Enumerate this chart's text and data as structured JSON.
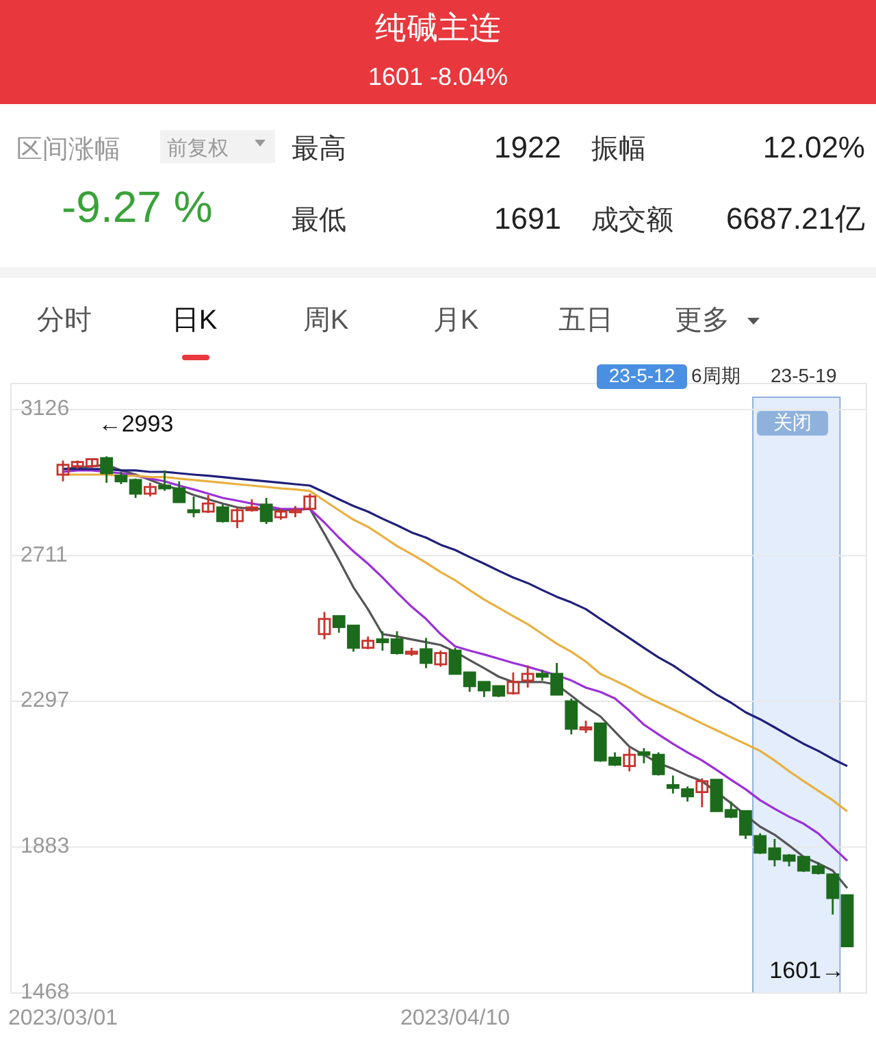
{
  "chart_data": {
    "type": "candlestick",
    "title": "纯碱主连",
    "subtitle": "1601 -8.04%",
    "categories": [
      "2023/03/01",
      null,
      null,
      null,
      null,
      null,
      null,
      null,
      null,
      null,
      null,
      null,
      null,
      null,
      null,
      null,
      null,
      null,
      null,
      null,
      null,
      null,
      null,
      null,
      null,
      null,
      null,
      "2023/04/10",
      null,
      null,
      null,
      null,
      null,
      null,
      null,
      null,
      null,
      null,
      null,
      null,
      null,
      null,
      null,
      null,
      null,
      null,
      null,
      null,
      null,
      null,
      null,
      null,
      null,
      null,
      null
    ],
    "ohlc": [
      [
        2941,
        2981,
        2922,
        2969
      ],
      [
        2965,
        2981,
        2957,
        2977
      ],
      [
        2965,
        2985,
        2961,
        2985
      ],
      [
        2988,
        2993,
        2918,
        2945
      ],
      [
        2938,
        2949,
        2914,
        2922
      ],
      [
        2926,
        2930,
        2875,
        2887
      ],
      [
        2887,
        2918,
        2879,
        2906
      ],
      [
        2910,
        2953,
        2895,
        2902
      ],
      [
        2902,
        2922,
        2863,
        2863
      ],
      [
        2840,
        2879,
        2820,
        2836
      ],
      [
        2836,
        2883,
        2832,
        2859
      ],
      [
        2848,
        2856,
        2805,
        2809
      ],
      [
        2809,
        2848,
        2789,
        2840
      ],
      [
        2840,
        2871,
        2836,
        2848
      ],
      [
        2856,
        2875,
        2801,
        2809
      ],
      [
        2820,
        2844,
        2813,
        2836
      ],
      [
        2836,
        2852,
        2820,
        2840
      ],
      [
        2844,
        2887,
        2840,
        2879
      ],
      [
        2488,
        2551,
        2473,
        2531
      ],
      [
        2539,
        2539,
        2492,
        2508
      ],
      [
        2512,
        2512,
        2438,
        2449
      ],
      [
        2449,
        2481,
        2445,
        2469
      ],
      [
        2473,
        2496,
        2441,
        2465
      ],
      [
        2473,
        2496,
        2430,
        2434
      ],
      [
        2434,
        2449,
        2426,
        2438
      ],
      [
        2445,
        2477,
        2391,
        2406
      ],
      [
        2402,
        2441,
        2395,
        2434
      ],
      [
        2441,
        2449,
        2375,
        2375
      ],
      [
        2379,
        2379,
        2324,
        2340
      ],
      [
        2352,
        2352,
        2309,
        2328
      ],
      [
        2340,
        2340,
        2309,
        2313
      ],
      [
        2320,
        2379,
        2316,
        2352
      ],
      [
        2356,
        2399,
        2336,
        2375
      ],
      [
        2375,
        2387,
        2356,
        2367
      ],
      [
        2375,
        2406,
        2316,
        2316
      ],
      [
        2297,
        2305,
        2203,
        2219
      ],
      [
        2219,
        2242,
        2207,
        2223
      ],
      [
        2234,
        2234,
        2125,
        2129
      ],
      [
        2137,
        2152,
        2113,
        2117
      ],
      [
        2113,
        2164,
        2098,
        2145
      ],
      [
        2152,
        2164,
        2121,
        2145
      ],
      [
        2145,
        2152,
        2086,
        2090
      ],
      [
        2059,
        2086,
        2035,
        2051
      ],
      [
        2047,
        2055,
        2012,
        2027
      ],
      [
        2039,
        2078,
        1996,
        2070
      ],
      [
        2074,
        2074,
        1985,
        1985
      ],
      [
        1988,
        2012,
        1965,
        1969
      ],
      [
        1985,
        1985,
        1906,
        1918
      ],
      [
        1914,
        1922,
        1863,
        1867
      ],
      [
        1879,
        1906,
        1828,
        1848
      ],
      [
        1859,
        1863,
        1828,
        1844
      ],
      [
        1855,
        1855,
        1812,
        1816
      ],
      [
        1828,
        1840,
        1805,
        1809
      ],
      [
        1805,
        1805,
        1691,
        1738
      ],
      [
        1746,
        1746,
        1601,
        1601
      ]
    ],
    "colors": [
      "#c8322c",
      "#c8322c",
      "#c8322c",
      "#1c6b1c",
      "#1c6b1c",
      "#1c6b1c",
      "#c8322c",
      "#1c6b1c",
      "#1c6b1c",
      "#1c6b1c",
      "#c8322c",
      "#1c6b1c",
      "#c8322c",
      "#c8322c",
      "#1c6b1c",
      "#c8322c",
      "#c8322c",
      "#c8322c",
      "#c8322c",
      "#1c6b1c",
      "#1c6b1c",
      "#c8322c",
      "#1c6b1c",
      "#1c6b1c",
      "#c8322c",
      "#1c6b1c",
      "#c8322c",
      "#1c6b1c",
      "#1c6b1c",
      "#1c6b1c",
      "#1c6b1c",
      "#c8322c",
      "#c8322c",
      "#1c6b1c",
      "#1c6b1c",
      "#1c6b1c",
      "#c8322c",
      "#1c6b1c",
      "#1c6b1c",
      "#c8322c",
      "#1c6b1c",
      "#1c6b1c",
      "#1c6b1c",
      "#1c6b1c",
      "#c8322c",
      "#1c6b1c",
      "#1c6b1c",
      "#1c6b1c",
      "#1c6b1c",
      "#1c6b1c",
      "#1c6b1c",
      "#1c6b1c",
      "#1c6b1c",
      "#1c6b1c",
      "#1c6b1c"
    ],
    "series": [
      {
        "type": "line",
        "color": "#555555",
        "values": [
          2957,
          2961,
          2965,
          2969,
          2953,
          2941,
          2926,
          2910,
          2899,
          2883,
          2871,
          2859,
          2848,
          2844,
          2844,
          2840,
          2840,
          2844,
          2773,
          2699,
          2621,
          2559,
          2488,
          2481,
          2473,
          2465,
          2457,
          2438,
          2414,
          2391,
          2367,
          2352,
          2352,
          2352,
          2344,
          2313,
          2281,
          2254,
          2211,
          2168,
          2145,
          2121,
          2105,
          2086,
          2070,
          2039,
          2008,
          1973,
          1941,
          1918,
          1887,
          1855,
          1836,
          1816,
          1766
        ]
      },
      {
        "type": "line",
        "color": "#9b30d9",
        "values": [
          2949,
          2953,
          2953,
          2949,
          2945,
          2938,
          2930,
          2922,
          2910,
          2899,
          2887,
          2875,
          2867,
          2859,
          2852,
          2844,
          2844,
          2844,
          2805,
          2762,
          2723,
          2688,
          2649,
          2606,
          2566,
          2531,
          2488,
          2453,
          2441,
          2430,
          2418,
          2406,
          2395,
          2383,
          2371,
          2356,
          2336,
          2324,
          2305,
          2270,
          2231,
          2203,
          2176,
          2152,
          2129,
          2102,
          2074,
          2047,
          2016,
          1992,
          1969,
          1949,
          1922,
          1883,
          1844
        ]
      },
      {
        "type": "line",
        "color": "#e8b040",
        "values": [
          2941,
          2941,
          2941,
          2941,
          2938,
          2938,
          2934,
          2934,
          2930,
          2926,
          2922,
          2918,
          2914,
          2910,
          2906,
          2902,
          2899,
          2895,
          2867,
          2840,
          2813,
          2793,
          2766,
          2738,
          2715,
          2691,
          2664,
          2641,
          2613,
          2586,
          2563,
          2539,
          2516,
          2488,
          2461,
          2438,
          2410,
          2375,
          2356,
          2336,
          2313,
          2293,
          2274,
          2254,
          2234,
          2215,
          2195,
          2176,
          2156,
          2129,
          2098,
          2070,
          2043,
          2016,
          1984
        ]
      },
      {
        "type": "line",
        "color": "#1f1f7a",
        "values": [
          2957,
          2957,
          2957,
          2957,
          2953,
          2953,
          2949,
          2949,
          2945,
          2941,
          2938,
          2934,
          2930,
          2926,
          2922,
          2918,
          2914,
          2910,
          2891,
          2871,
          2852,
          2836,
          2816,
          2797,
          2777,
          2762,
          2742,
          2727,
          2707,
          2688,
          2668,
          2649,
          2633,
          2613,
          2594,
          2578,
          2559,
          2531,
          2504,
          2477,
          2449,
          2422,
          2399,
          2371,
          2344,
          2316,
          2293,
          2266,
          2246,
          2223,
          2199,
          2176,
          2156,
          2133,
          2113
        ]
      }
    ],
    "ylim": [
      1468,
      3126
    ],
    "yticks": [
      3126,
      2711,
      2297,
      1883,
      1468
    ],
    "grid": "y",
    "annotations": [
      "区间涨幅",
      "前复权",
      "-9.27 %",
      "最高",
      "1922",
      "振幅",
      "12.02%",
      "最低",
      "1691",
      "成交额",
      "6687.21亿",
      "分时",
      "日K",
      "周K",
      "月K",
      "五日",
      "更多",
      "23-5-12",
      "6周期",
      "23-5-19",
      "关闭",
      "←2993",
      "1601→"
    ]
  }
}
